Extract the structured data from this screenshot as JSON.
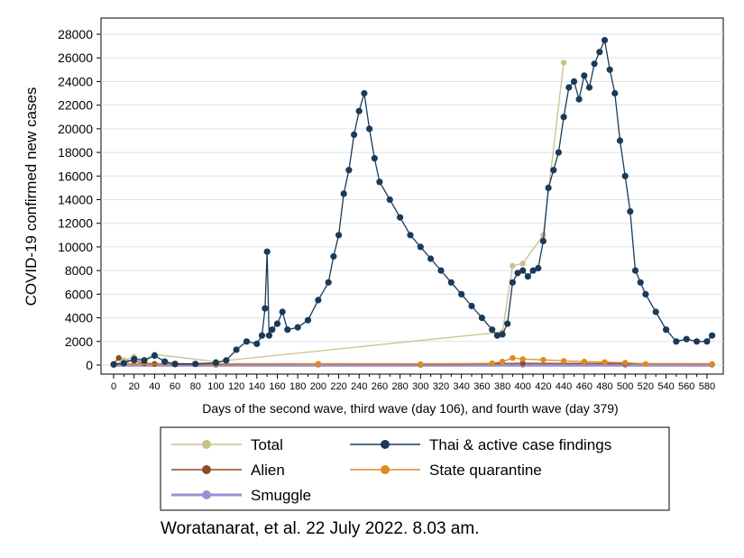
{
  "chart_data": {
    "type": "line",
    "xlabel": "Days of the second wave, third wave (day 106), and fourth wave (day 379)",
    "ylabel": "COVID-19 confirmed new cases",
    "xlim": [
      0,
      588
    ],
    "ylim": [
      0,
      28000
    ],
    "x_ticks": [
      0,
      20,
      40,
      60,
      80,
      100,
      120,
      140,
      160,
      180,
      200,
      220,
      240,
      260,
      280,
      300,
      320,
      340,
      360,
      380,
      400,
      420,
      440,
      460,
      480,
      500,
      520,
      540,
      560,
      580
    ],
    "y_ticks": [
      0,
      2000,
      4000,
      6000,
      8000,
      10000,
      12000,
      14000,
      16000,
      18000,
      20000,
      22000,
      24000,
      26000,
      28000
    ],
    "grid": "horizontal",
    "legend": "bottom",
    "colors": {
      "total": "#c8c28a",
      "thai": "#1a3a5a",
      "alien": "#8b4a28",
      "state_quarantine": "#e08a1e",
      "smuggle": "#9a8fd0"
    },
    "series": [
      {
        "name": "Thai & active case findings",
        "key": "thai",
        "x": [
          0,
          10,
          20,
          30,
          40,
          50,
          60,
          80,
          100,
          110,
          120,
          130,
          140,
          145,
          148,
          150,
          152,
          155,
          160,
          165,
          170,
          180,
          190,
          200,
          210,
          215,
          220,
          225,
          230,
          235,
          240,
          245,
          250,
          255,
          260,
          270,
          280,
          290,
          300,
          310,
          320,
          330,
          340,
          350,
          360,
          370,
          375,
          380,
          385,
          390,
          395,
          400,
          405,
          410,
          415,
          420,
          425,
          430,
          435,
          440,
          445,
          450,
          455,
          460,
          465,
          470,
          475,
          480,
          485,
          490,
          495,
          500,
          505,
          510,
          515,
          520,
          530,
          540,
          550,
          560,
          570,
          580,
          585
        ],
        "y": [
          50,
          150,
          500,
          400,
          800,
          300,
          100,
          100,
          200,
          400,
          1300,
          2000,
          1800,
          2500,
          4800,
          9600,
          2500,
          3000,
          3500,
          4500,
          3000,
          3200,
          3800,
          5500,
          7000,
          9200,
          11000,
          14500,
          16500,
          19500,
          21500,
          23000,
          20000,
          17500,
          15500,
          14000,
          12500,
          11000,
          10000,
          9000,
          8000,
          7000,
          6000,
          5000,
          4000,
          3000,
          2500,
          2600,
          3500,
          7000,
          7800,
          8000,
          7500,
          8000,
          8200,
          10500,
          15000,
          16500,
          18000,
          21000,
          23500,
          24000,
          22500,
          24500,
          23500,
          25500,
          26500,
          27500,
          25000,
          23000,
          19000,
          16000,
          13000,
          8000,
          7000,
          6000,
          4500,
          3000,
          2000,
          2200,
          2000,
          2000,
          2500
        ]
      },
      {
        "name": "Total",
        "key": "total",
        "x": [
          0,
          10,
          20,
          30,
          40,
          100,
          380,
          390,
          400,
          420,
          440
        ],
        "y": [
          60,
          400,
          700,
          450,
          900,
          300,
          2800,
          8400,
          8600,
          11000,
          25600
        ]
      },
      {
        "name": "Alien",
        "key": "alien",
        "x": [
          0,
          5,
          10,
          20,
          30,
          40,
          60,
          100,
          200,
          300,
          400,
          500,
          585
        ],
        "y": [
          100,
          600,
          400,
          350,
          150,
          100,
          50,
          50,
          100,
          50,
          150,
          120,
          80
        ]
      },
      {
        "name": "State quarantine",
        "key": "state_quarantine",
        "x": [
          0,
          100,
          200,
          300,
          370,
          380,
          390,
          400,
          420,
          440,
          460,
          480,
          500,
          520,
          585
        ],
        "y": [
          50,
          80,
          100,
          80,
          150,
          300,
          600,
          500,
          450,
          350,
          300,
          250,
          200,
          100,
          80
        ]
      },
      {
        "name": "Smuggle",
        "key": "smuggle",
        "x": [
          0,
          100,
          200,
          300,
          400,
          500,
          585
        ],
        "y": [
          20,
          20,
          20,
          20,
          20,
          20,
          20
        ]
      }
    ],
    "legend_entries": [
      {
        "key": "total",
        "label": "Total"
      },
      {
        "key": "thai",
        "label": "Thai & active case findings"
      },
      {
        "key": "alien",
        "label": "Alien"
      },
      {
        "key": "state_quarantine",
        "label": "State quarantine"
      },
      {
        "key": "smuggle",
        "label": "Smuggle"
      }
    ]
  },
  "caption": "Woratanarat, et al. 22 July 2022. 8.03 am."
}
